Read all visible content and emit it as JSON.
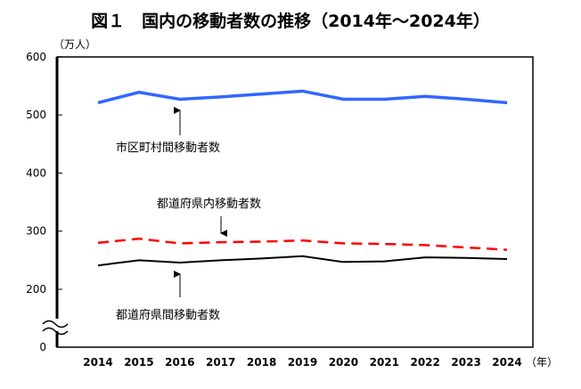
{
  "chart_data": {
    "type": "line",
    "title": "図１　国内の移動者数の推移（2014年～2024年）",
    "ylabel": "（万人）",
    "xlabel": "（年）",
    "ylim": [
      0,
      600
    ],
    "y_axis_break": true,
    "yticks": [
      "0",
      "200",
      "300",
      "400",
      "500",
      "600"
    ],
    "grid": false,
    "x": [
      "2014",
      "2015",
      "2016",
      "2017",
      "2018",
      "2019",
      "2020",
      "2021",
      "2022",
      "2023",
      "2024"
    ],
    "series": [
      {
        "name": "市区町村間移動者数",
        "color": "#3366ff",
        "style": "solid",
        "values": [
          521,
          539,
          527,
          531,
          536,
          541,
          527,
          527,
          532,
          527,
          521
        ]
      },
      {
        "name": "都道府県内移動者数",
        "color": "#ff0000",
        "style": "dashed",
        "values": [
          280,
          287,
          279,
          281,
          282,
          284,
          279,
          278,
          276,
          272,
          268
        ]
      },
      {
        "name": "都道府県間移動者数",
        "color": "#000000",
        "style": "solid",
        "values": [
          241,
          250,
          246,
          250,
          253,
          257,
          247,
          248,
          255,
          254,
          252
        ]
      }
    ]
  }
}
